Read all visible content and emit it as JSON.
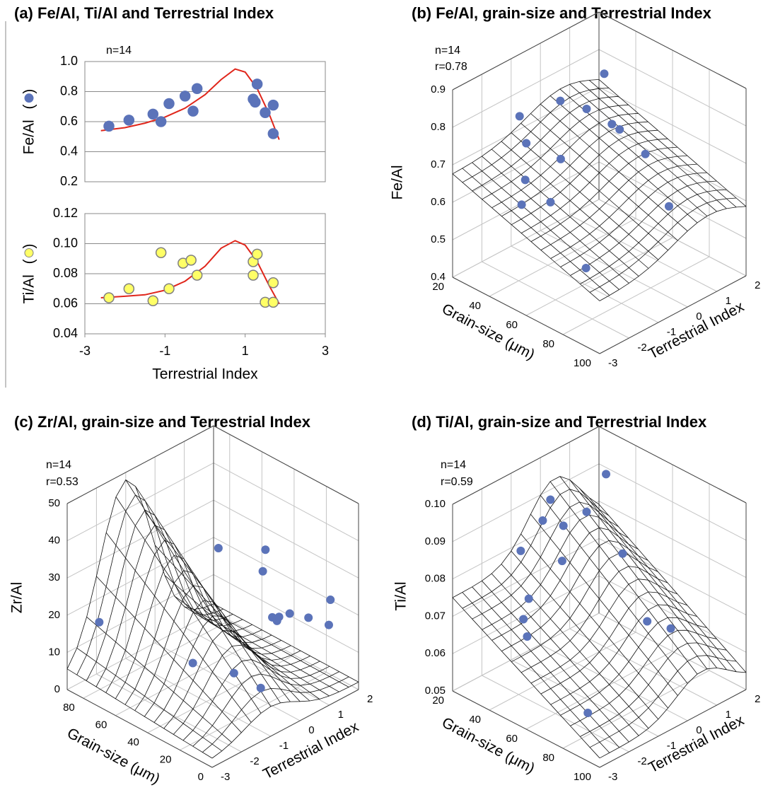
{
  "chart_data": [
    {
      "type": "scatter",
      "title": "(a) Fe/Al, Ti/Al and Terrestrial Index",
      "annotations": [
        "n=14"
      ],
      "y_label": "Fe/Al ( )",
      "x": [
        -2.4,
        -1.9,
        -1.3,
        -1.1,
        -0.9,
        -0.5,
        -0.3,
        -0.2,
        1.2,
        1.25,
        1.3,
        1.5,
        1.7,
        1.7
      ],
      "values": [
        0.57,
        0.61,
        0.65,
        0.6,
        0.72,
        0.77,
        0.67,
        0.82,
        0.75,
        0.73,
        0.85,
        0.66,
        0.71,
        0.52
      ],
      "color": "#5b73b9",
      "edgecolor": "#5b73b9",
      "fit": {
        "x": [
          -2.6,
          -2,
          -1.5,
          -1,
          -0.5,
          0,
          0.4,
          0.75,
          1,
          1.3,
          1.6,
          1.85
        ],
        "values": [
          0.54,
          0.56,
          0.59,
          0.63,
          0.69,
          0.78,
          0.88,
          0.95,
          0.93,
          0.82,
          0.65,
          0.48
        ],
        "color": "#e0261b"
      },
      "xlim": [
        -3,
        3
      ],
      "ylim": [
        0.2,
        1
      ],
      "yticks": [
        0.2,
        0.4,
        0.6,
        0.8,
        {
          "value": 1,
          "label": "1.0"
        }
      ],
      "grid": true
    },
    {
      "type": "scatter",
      "y_label": "Ti/Al ( )",
      "x_label": "Terrestrial Index",
      "x": [
        -2.4,
        -1.9,
        -1.3,
        -1.1,
        -0.9,
        -0.55,
        -0.35,
        -0.2,
        1.2,
        1.2,
        1.3,
        1.5,
        1.7,
        1.7
      ],
      "values": [
        0.064,
        0.07,
        0.062,
        0.094,
        0.07,
        0.087,
        0.089,
        0.079,
        0.088,
        0.079,
        0.093,
        0.061,
        0.061,
        0.074
      ],
      "color": "#ffff66",
      "edgecolor": "#808080",
      "fit": {
        "x": [
          -2.6,
          -2,
          -1.5,
          -1,
          -0.5,
          0,
          0.4,
          0.75,
          1,
          1.3,
          1.6,
          1.85
        ],
        "values": [
          0.064,
          0.065,
          0.066,
          0.069,
          0.075,
          0.085,
          0.097,
          0.102,
          0.099,
          0.088,
          0.072,
          0.06
        ],
        "color": "#e0261b"
      },
      "xlim": [
        -3,
        3
      ],
      "xticks": [
        -3,
        -1,
        1,
        3
      ],
      "ylim": [
        0.04,
        0.12
      ],
      "yticks": [
        0.04,
        0.06,
        0.08,
        {
          "value": 0.1,
          "label": "0.10"
        },
        0.12
      ],
      "grid": true
    },
    {
      "type": "scatter3d",
      "title": "(b) Fe/Al, grain-size and Terrestrial Index",
      "annotations": [
        "n=14",
        "r=0.78"
      ],
      "x_label": "Terrestrial Index",
      "y_label": "Grain-size (μm)",
      "z_label": "Fe/Al",
      "x": [
        1.3,
        -0.2,
        -0.9,
        1.2,
        1.5,
        1.7,
        -1.3,
        -0.5,
        1.7,
        -1.9,
        -2.4,
        -1.1,
        1.25,
        -2.4
      ],
      "y": [
        34,
        34,
        23,
        26,
        35,
        36,
        33,
        39,
        50,
        42,
        48,
        43,
        70,
        83
      ],
      "values": [
        0.8,
        0.79,
        0.75,
        0.69,
        0.66,
        0.64,
        0.72,
        0.66,
        0.61,
        0.67,
        0.64,
        0.58,
        0.54,
        0.56
      ],
      "color": "#5b73b9",
      "xlim": [
        -3,
        2
      ],
      "xticks": [
        -3,
        -2,
        -1,
        0,
        1,
        2
      ],
      "ylim": [
        20,
        100
      ],
      "yticks": [
        20,
        40,
        60,
        80,
        100
      ],
      "zlim": [
        0.4,
        0.9
      ],
      "zticks": [
        0.4,
        0.5,
        0.6,
        0.7,
        0.8,
        0.9
      ],
      "grid": true
    },
    {
      "type": "scatter3d",
      "title": "(c) Zr/Al, grain-size and Terrestrial Index",
      "annotations": [
        "n=14",
        "r=0.53"
      ],
      "x_label": "Terrestrial Index",
      "y_label": "Grain-size (μm)",
      "z_label": "Zr/Al",
      "x": [
        -2.4,
        -0.2,
        -0.3,
        -0.5,
        1.2,
        1.25,
        1.3,
        1.5,
        1.7,
        1.7,
        -1.9,
        -1.1,
        -0.9,
        -0.55
      ],
      "y": [
        81,
        47,
        16,
        14,
        39,
        37,
        30,
        22,
        13,
        12,
        32,
        21,
        8,
        3
      ],
      "values": [
        17.7,
        36.3,
        43.5,
        39,
        13.7,
        13,
        16.4,
        16.3,
        15.6,
        22.6,
        16,
        12.5,
        10.7,
        29.5
      ],
      "color": "#5b73b9",
      "xlim": [
        -3,
        2
      ],
      "xticks": [
        -3,
        -2,
        -1,
        0,
        1,
        2
      ],
      "ylim": [
        0,
        90
      ],
      "yticks": [
        0,
        20,
        40,
        60,
        80
      ],
      "zlim": [
        0,
        50
      ],
      "zticks": [
        0,
        10,
        20,
        30,
        40,
        50
      ],
      "grid": true
    },
    {
      "type": "scatter3d",
      "title": "(d) Ti/Al, grain-size and Terrestrial Index",
      "annotations": [
        "n=14",
        "r=0.59"
      ],
      "x_label": "Terrestrial Index",
      "y_label": "Grain-size (μm)",
      "z_label": "Ti/Al",
      "x": [
        1.3,
        1.2,
        -0.35,
        -0.55,
        -1.1,
        -1.3,
        -0.2,
        1.3,
        -0.9,
        -1.9,
        -2.4,
        1.7,
        1.5,
        -2.4
      ],
      "y": [
        35,
        26,
        31,
        30,
        50,
        30,
        35,
        44,
        28,
        41,
        51,
        51,
        67,
        84
      ],
      "values": [
        0.094,
        0.082,
        0.093,
        0.088,
        0.094,
        0.083,
        0.077,
        0.075,
        0.068,
        0.07,
        0.07,
        0.057,
        0.06,
        0.058
      ],
      "color": "#5b73b9",
      "xlim": [
        -3,
        2
      ],
      "xticks": [
        -3,
        -2,
        -1,
        0,
        1,
        2
      ],
      "ylim": [
        20,
        100
      ],
      "yticks": [
        20,
        40,
        60,
        80,
        100
      ],
      "zlim": [
        0.05,
        0.1
      ],
      "zticks": [
        0.05,
        0.06,
        0.07,
        0.08,
        0.09,
        {
          "value": 0.1,
          "label": "0.10"
        }
      ],
      "grid": true
    }
  ]
}
